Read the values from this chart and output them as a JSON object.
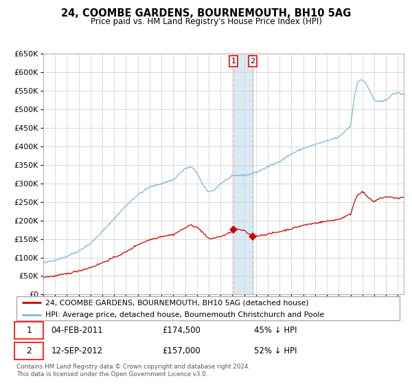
{
  "title": "24, COOMBE GARDENS, BOURNEMOUTH, BH10 5AG",
  "subtitle": "Price paid vs. HM Land Registry's House Price Index (HPI)",
  "legend_line1": "24, COOMBE GARDENS, BOURNEMOUTH, BH10 5AG (detached house)",
  "legend_line2": "HPI: Average price, detached house, Bournemouth Christchurch and Poole",
  "transaction1_date": "04-FEB-2011",
  "transaction1_price": "£174,500",
  "transaction1_hpi": "45% ↓ HPI",
  "transaction2_date": "12-SEP-2012",
  "transaction2_price": "£157,000",
  "transaction2_hpi": "52% ↓ HPI",
  "footer": "Contains HM Land Registry data © Crown copyright and database right 2024.\nThis data is licensed under the Open Government Licence v3.0.",
  "hpi_color": "#7ab5d8",
  "price_color": "#cc0000",
  "marker_color": "#cc0000",
  "vline1_color": "#ffaaaa",
  "vline2_color": "#bbbbbb",
  "shade_color": "#daeaf5",
  "grid_color": "#cccccc",
  "ylim": [
    0,
    650000
  ],
  "yticks": [
    0,
    50000,
    100000,
    150000,
    200000,
    250000,
    300000,
    350000,
    400000,
    450000,
    500000,
    550000,
    600000,
    650000
  ],
  "xmin": 1995,
  "xmax": 2025.5,
  "transaction1_x": 2011.09,
  "transaction1_y": 174500,
  "transaction2_x": 2012.71,
  "transaction2_y": 157000,
  "hpi_anchors_x": [
    1995.0,
    1996.0,
    1997.0,
    1998.0,
    1999.0,
    2000.0,
    2001.0,
    2002.0,
    2003.0,
    2004.0,
    2005.0,
    2006.0,
    2007.0,
    2007.5,
    2008.0,
    2008.5,
    2009.0,
    2009.5,
    2010.0,
    2010.5,
    2011.0,
    2011.5,
    2012.0,
    2012.5,
    2013.0,
    2014.0,
    2015.0,
    2016.0,
    2017.0,
    2018.0,
    2019.0,
    2020.0,
    2020.5,
    2021.0,
    2021.3,
    2021.6,
    2022.0,
    2022.3,
    2022.7,
    2023.0,
    2023.5,
    2024.0,
    2024.5,
    2025.0,
    2025.5
  ],
  "hpi_anchors_y": [
    85000,
    93000,
    103000,
    118000,
    138000,
    170000,
    205000,
    240000,
    270000,
    290000,
    300000,
    310000,
    340000,
    345000,
    330000,
    295000,
    277000,
    283000,
    300000,
    310000,
    320000,
    322000,
    322000,
    325000,
    330000,
    345000,
    360000,
    380000,
    395000,
    405000,
    415000,
    425000,
    440000,
    455000,
    530000,
    575000,
    580000,
    570000,
    545000,
    525000,
    520000,
    525000,
    540000,
    545000,
    540000
  ],
  "price_anchors_x": [
    1995.0,
    1996.0,
    1997.0,
    1998.0,
    1999.0,
    2000.0,
    2001.0,
    2002.0,
    2003.0,
    2004.0,
    2005.0,
    2006.0,
    2007.0,
    2007.5,
    2008.0,
    2008.5,
    2009.0,
    2009.5,
    2010.0,
    2010.5,
    2011.0,
    2011.1,
    2011.5,
    2012.0,
    2012.5,
    2012.75,
    2013.0,
    2014.0,
    2015.0,
    2016.0,
    2017.0,
    2018.0,
    2019.0,
    2020.0,
    2020.5,
    2021.0,
    2021.3,
    2021.6,
    2022.0,
    2022.3,
    2022.7,
    2023.0,
    2023.5,
    2024.0,
    2025.0,
    2025.5
  ],
  "price_anchors_y": [
    47000,
    50000,
    56000,
    64000,
    73000,
    86000,
    100000,
    115000,
    135000,
    148000,
    157000,
    162000,
    180000,
    188000,
    182000,
    168000,
    150000,
    153000,
    157000,
    162000,
    172000,
    174500,
    176000,
    172000,
    162000,
    157000,
    158000,
    163000,
    170000,
    178000,
    187000,
    193000,
    198000,
    203000,
    210000,
    217000,
    248000,
    270000,
    278000,
    268000,
    256000,
    250000,
    260000,
    264000,
    260000,
    263000
  ]
}
